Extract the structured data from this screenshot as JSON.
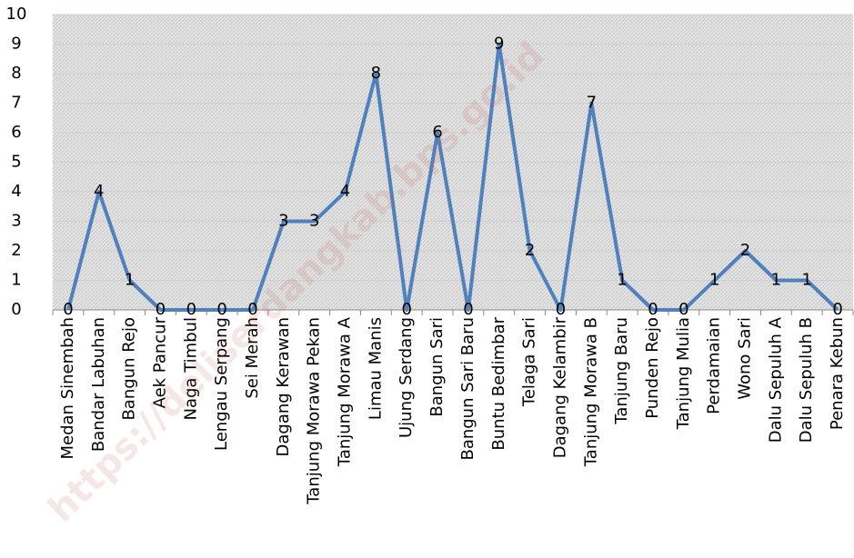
{
  "chart_data": {
    "type": "line",
    "categories": [
      "Medan Sinembah",
      "Bandar Labuhan",
      "Bangun Rejo",
      "Aek Pancur",
      "Naga Timbul",
      "Lengau Serpang",
      "Sei Merah",
      "Dagang Kerawan",
      "Tanjung Morawa Pekan",
      "Tanjung Morawa A",
      "Limau Manis",
      "Ujung Serdang",
      "Bangun Sari",
      "Bangun Sari Baru",
      "Buntu Bedimbar",
      "Telaga Sari",
      "Dagang Kelambir",
      "Tanjung Morawa B",
      "Tanjung Baru",
      "Punden Rejo",
      "Tanjung Mulia",
      "Perdamaian",
      "Wono Sari",
      "Dalu Sepuluh A",
      "Dalu Sepuluh B",
      "Penara Kebun"
    ],
    "values": [
      0,
      4,
      1,
      0,
      0,
      0,
      0,
      3,
      3,
      4,
      8,
      0,
      6,
      0,
      9,
      2,
      0,
      7,
      1,
      0,
      0,
      1,
      2,
      1,
      1,
      0
    ],
    "color": "#4f81bd",
    "ylim": [
      0,
      10
    ],
    "yticks": [
      0,
      1,
      2,
      3,
      4,
      5,
      6,
      7,
      8,
      9,
      10
    ],
    "grid": true,
    "watermark": "https://deliserdangkab.bps.go.id"
  }
}
